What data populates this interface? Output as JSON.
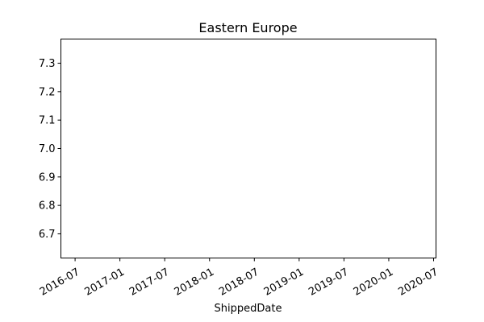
{
  "chart_data": {
    "type": "line",
    "title": "Eastern Europe",
    "xlabel": "ShippedDate",
    "ylabel": "",
    "x_ticks": [
      "2016-07",
      "2017-01",
      "2017-07",
      "2018-01",
      "2018-07",
      "2019-01",
      "2019-07",
      "2020-01",
      "2020-07"
    ],
    "y_ticks": [
      "6.7",
      "6.8",
      "6.9",
      "7.0",
      "7.1",
      "7.2",
      "7.3"
    ],
    "xlim": [
      "2016-05",
      "2020-07"
    ],
    "ylim": [
      6.615,
      7.385
    ],
    "grid": false,
    "series": []
  }
}
